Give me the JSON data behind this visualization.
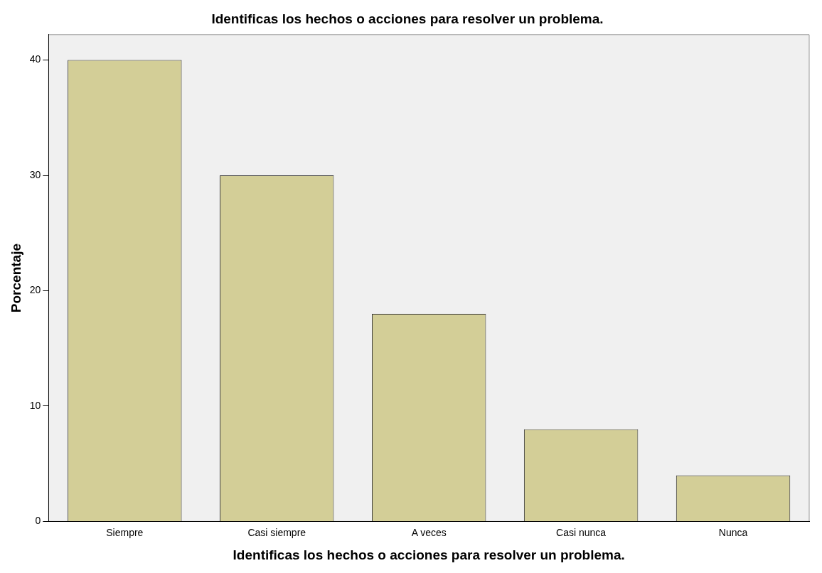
{
  "chart_data": {
    "type": "bar",
    "title": "Identificas los hechos o acciones para resolver un problema.",
    "xlabel": "Identificas los hechos o acciones para resolver un problema.",
    "ylabel": "Porcentaje",
    "categories": [
      "Siempre",
      "Casi siempre",
      "A veces",
      "Casi nunca",
      "Nunca"
    ],
    "values": [
      40,
      30,
      18,
      8,
      4
    ],
    "color": "#d3ce97",
    "ylim": [
      0,
      42.2
    ],
    "yticks": [
      0,
      10,
      20,
      30,
      40
    ],
    "grid": false,
    "legend": false
  }
}
